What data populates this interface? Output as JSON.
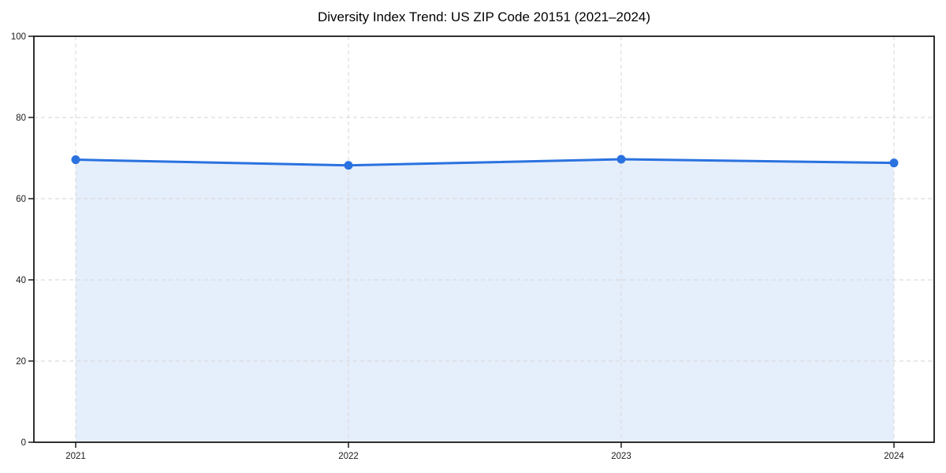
{
  "chart_data": {
    "type": "area",
    "title": "Diversity Index Trend: US ZIP Code 20151 (2021–2024)",
    "categories": [
      "2021",
      "2022",
      "2023",
      "2024"
    ],
    "series": [
      {
        "name": "Diversity Index",
        "values": [
          69.6,
          68.2,
          69.7,
          68.8
        ]
      }
    ],
    "xlabel": "",
    "ylabel": "",
    "ylim": [
      0,
      100
    ],
    "yticks": [
      0,
      20,
      40,
      60,
      80,
      100
    ],
    "grid": "dashed horizontal and vertical gridlines",
    "legend_position": "none",
    "colors": {
      "line": "#2a72e0",
      "marker": "#2a72e0",
      "fill": "rgba(42,114,224,0.12)",
      "grid": "#dcdcdc",
      "spine": "#1a1a1a",
      "tick_text": "#1a1a1a",
      "title_text": "#000000",
      "background": "#ffffff"
    }
  }
}
